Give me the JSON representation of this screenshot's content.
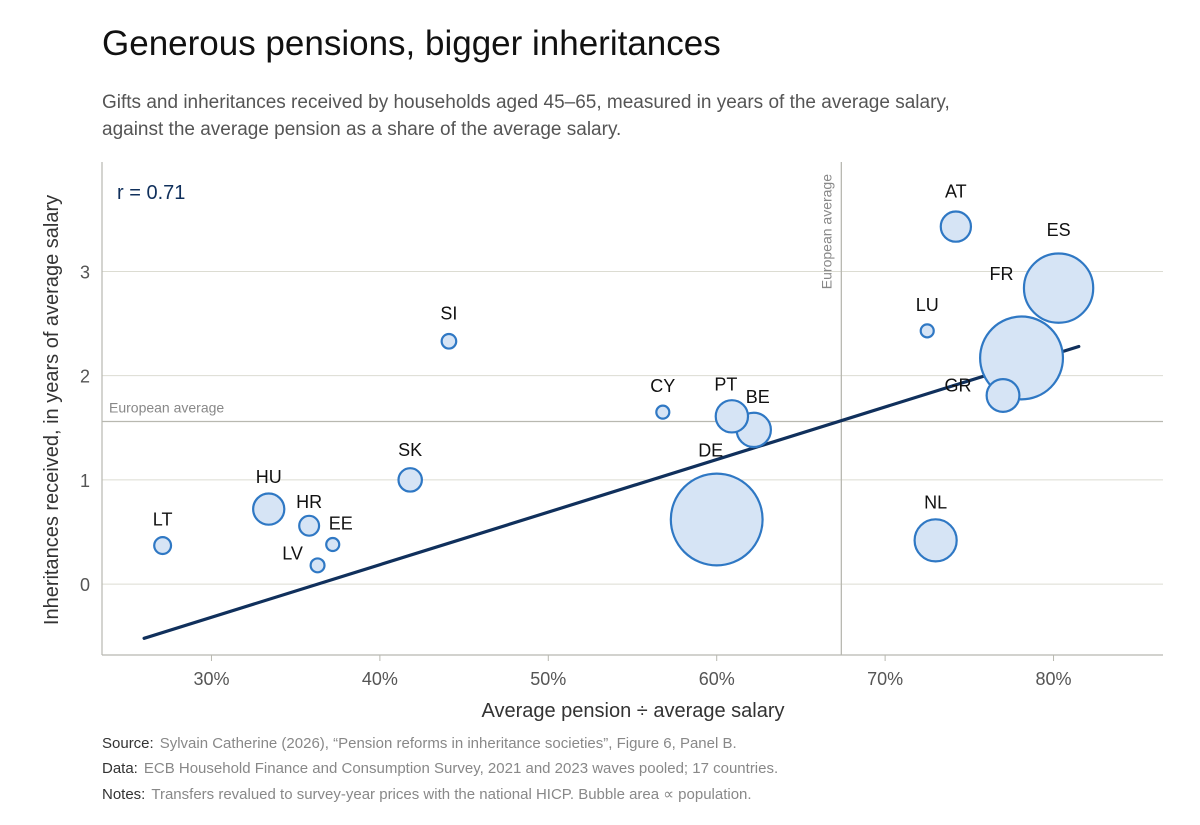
{
  "header": {
    "title": "Generous pensions, bigger inheritances",
    "subtitle": "Gifts and inheritances received by households aged 45–65, measured in years of the average salary, against the average pension as a share of the average salary."
  },
  "chart_data": {
    "type": "scatter",
    "xlabel": "Average pension ÷ average salary",
    "ylabel": "Inheritances received, in years of average salary",
    "xlim": [
      0.235,
      0.865
    ],
    "ylim": [
      -0.68,
      4.05
    ],
    "x_ticks": [
      0.3,
      0.4,
      0.5,
      0.6,
      0.7,
      0.8
    ],
    "x_tick_labels": [
      "30%",
      "40%",
      "50%",
      "60%",
      "70%",
      "80%"
    ],
    "y_ticks": [
      0,
      1,
      2,
      3
    ],
    "y_tick_labels": [
      "0",
      "1",
      "2",
      "3"
    ],
    "grid": "horizontal",
    "correlation_label": "r = 0.71",
    "reference_lines": {
      "x": {
        "value": 0.674,
        "label": "European average"
      },
      "y": {
        "value": 1.56,
        "label": "European average"
      }
    },
    "fit_line": {
      "x": [
        0.26,
        0.815
      ],
      "y": [
        -0.52,
        2.28
      ]
    },
    "size_encoding": "population",
    "points": [
      {
        "label": "LT",
        "x": 0.271,
        "y": 0.37,
        "population": 2.8
      },
      {
        "label": "HU",
        "x": 0.334,
        "y": 0.72,
        "population": 9.6
      },
      {
        "label": "HR",
        "x": 0.358,
        "y": 0.56,
        "population": 3.9
      },
      {
        "label": "EE",
        "x": 0.372,
        "y": 0.38,
        "population": 1.3
      },
      {
        "label": "LV",
        "x": 0.363,
        "y": 0.18,
        "population": 1.9
      },
      {
        "label": "SK",
        "x": 0.418,
        "y": 1.0,
        "population": 5.4
      },
      {
        "label": "SI",
        "x": 0.441,
        "y": 2.33,
        "population": 2.1
      },
      {
        "label": "CY",
        "x": 0.568,
        "y": 1.65,
        "population": 0.9
      },
      {
        "label": "PT",
        "x": 0.609,
        "y": 1.61,
        "population": 10.3
      },
      {
        "label": "BE",
        "x": 0.622,
        "y": 1.48,
        "population": 11.6
      },
      {
        "label": "DE",
        "x": 0.6,
        "y": 0.62,
        "population": 83.2
      },
      {
        "label": "AT",
        "x": 0.742,
        "y": 3.43,
        "population": 9.0
      },
      {
        "label": "ES",
        "x": 0.803,
        "y": 2.84,
        "population": 47.4
      },
      {
        "label": "LU",
        "x": 0.725,
        "y": 2.43,
        "population": 0.6
      },
      {
        "label": "FR",
        "x": 0.781,
        "y": 2.17,
        "population": 67.8
      },
      {
        "label": "GR",
        "x": 0.77,
        "y": 1.81,
        "population": 10.6
      },
      {
        "label": "NL",
        "x": 0.73,
        "y": 0.42,
        "population": 17.5
      }
    ]
  },
  "footer": {
    "source_key": "Source:",
    "source_text": "Sylvain Catherine (2026), “Pension reforms in inheritance societies”, Figure 6, Panel B.",
    "data_key": "Data:",
    "data_text": "ECB Household Finance and Consumption Survey, 2021 and 2023 waves pooled; 17 countries.",
    "notes_key": "Notes:",
    "notes_text": "Transfers revalued to survey-year prices with the national HICP. Bubble area ∝ population."
  },
  "colors": {
    "bubble_fill": "#d6e4f5",
    "bubble_stroke": "#2f78c4",
    "fit_line": "#10305c",
    "grid": "#dcdcd2",
    "reference": "#b8b8b0",
    "axis": "#b8b8b0"
  }
}
